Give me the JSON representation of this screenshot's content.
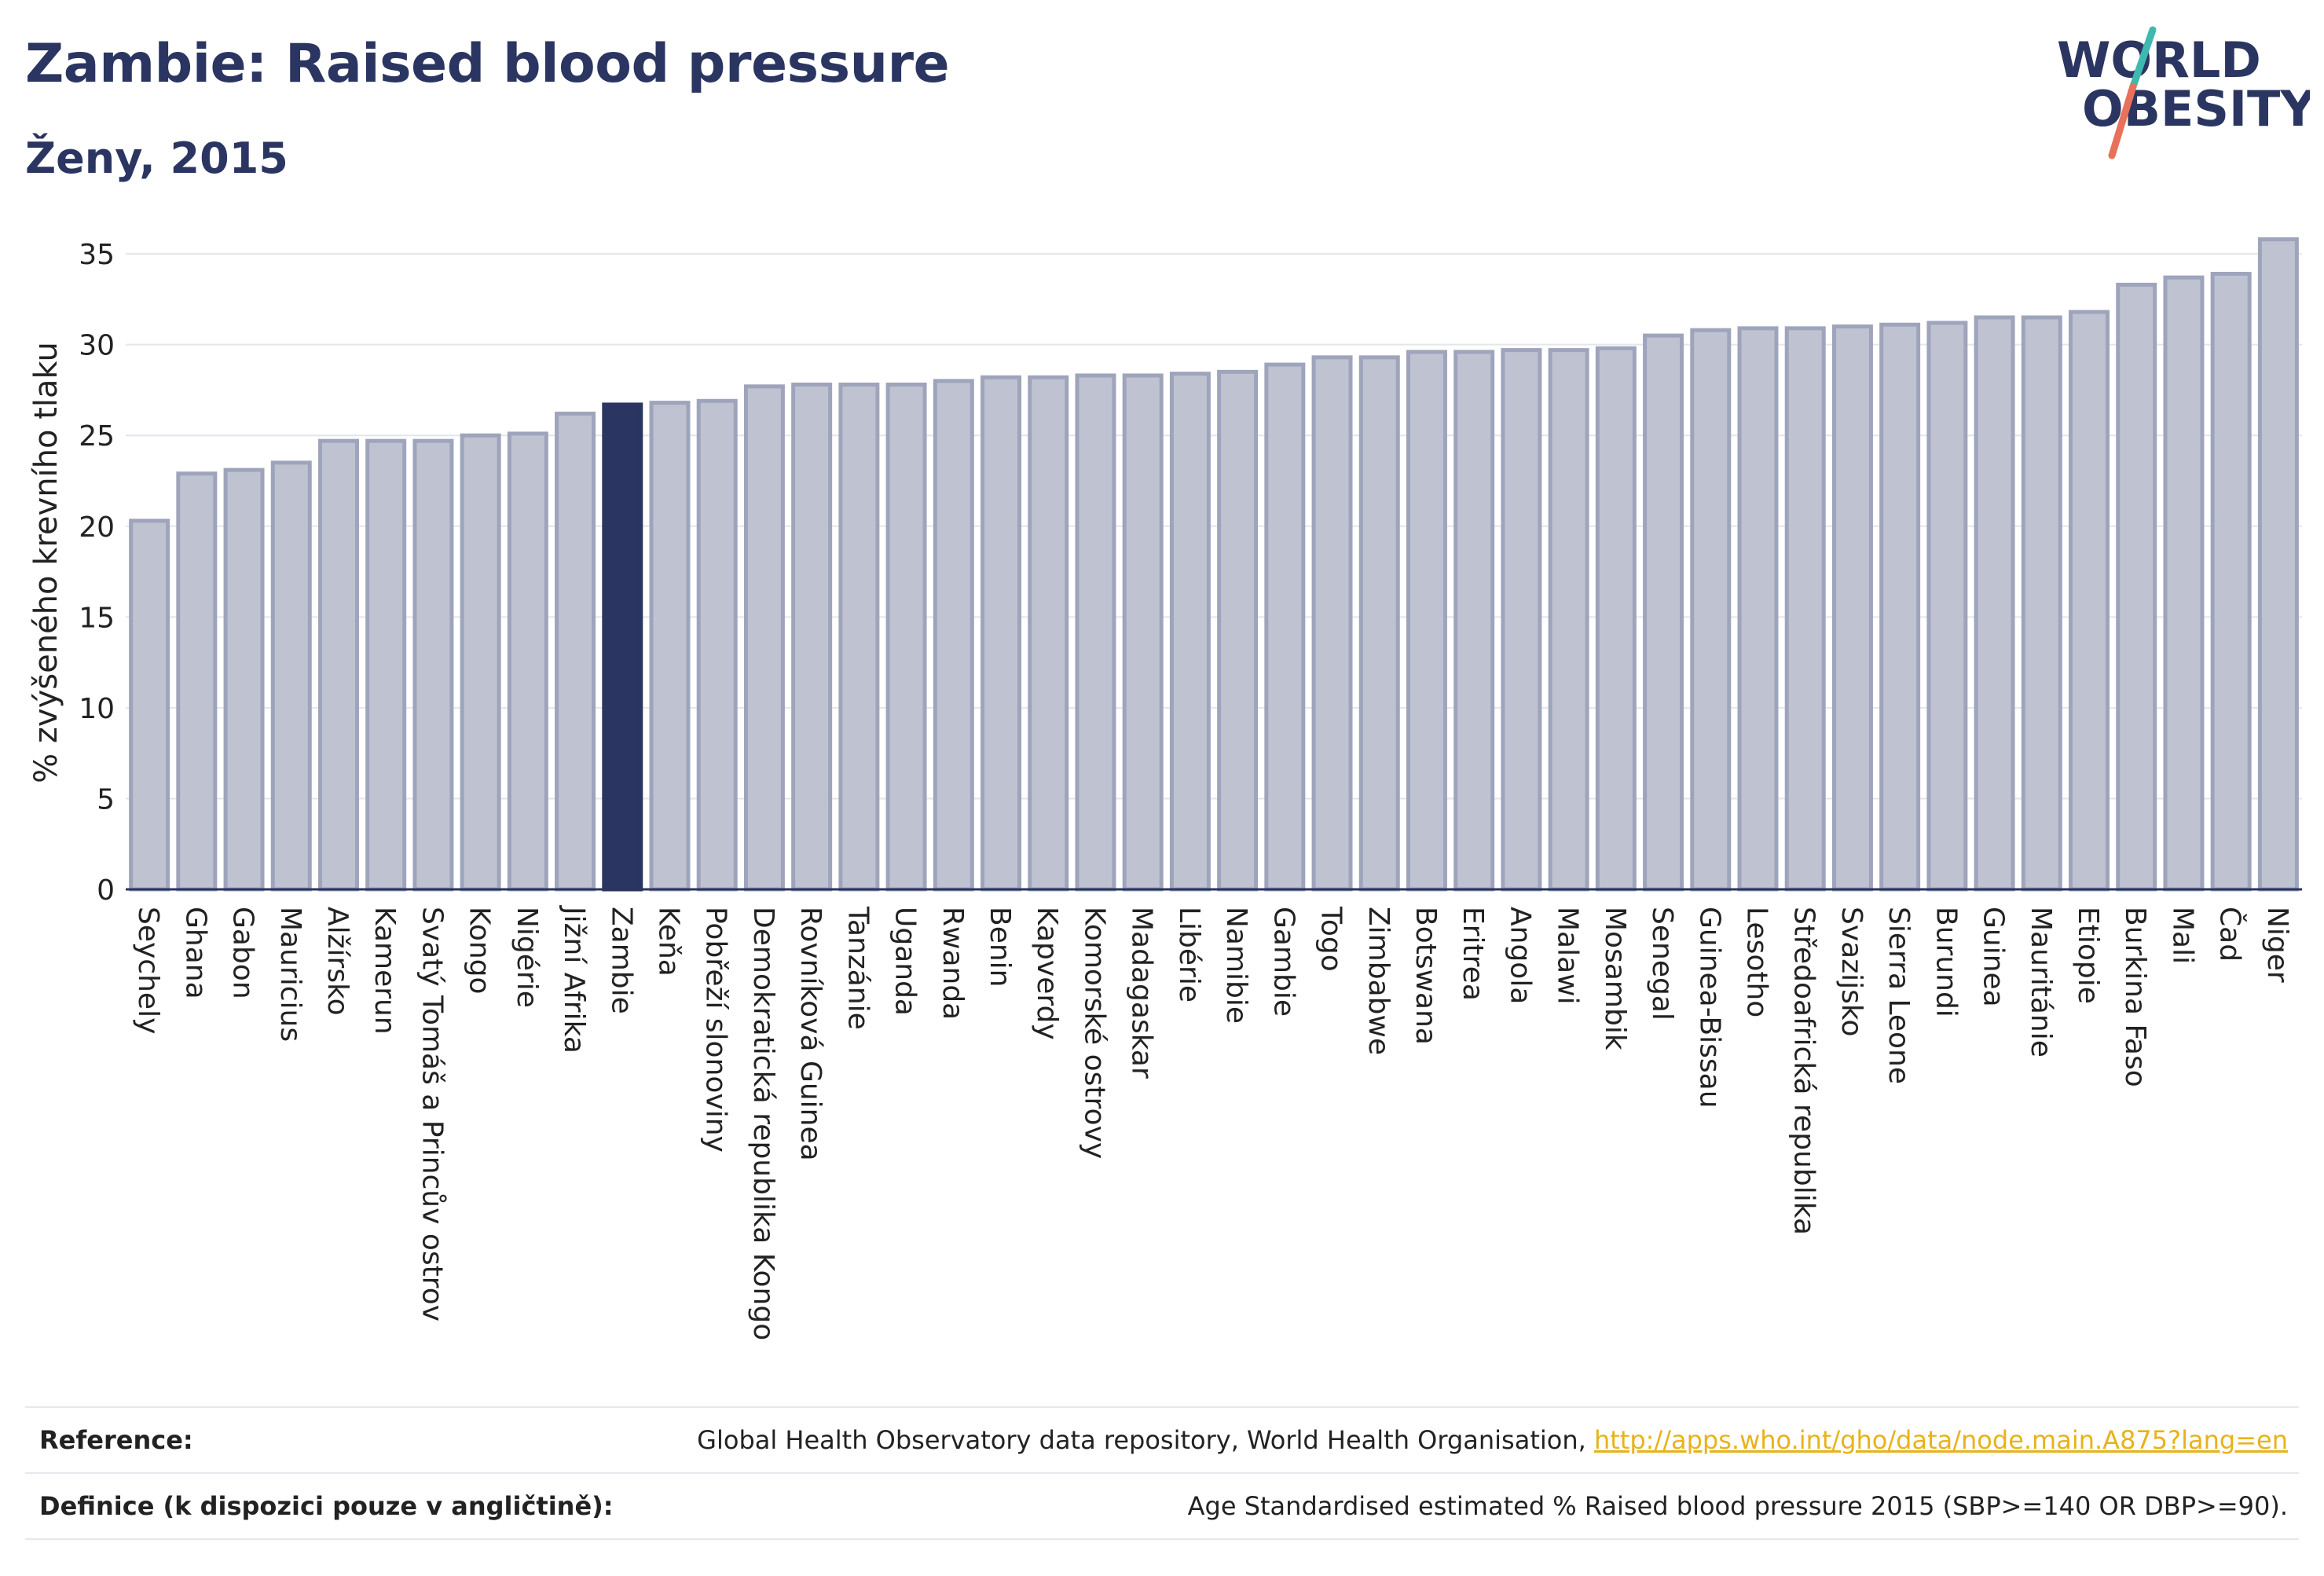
{
  "header": {
    "title": "Zambie: Raised blood pressure",
    "subtitle": "Ženy, 2015"
  },
  "logo": {
    "line1": "WORLD",
    "line2": "OBESITY",
    "colors": {
      "text": "#2b3561",
      "slash_top": "#3fb8af",
      "slash_bottom": "#e8715a"
    }
  },
  "chart_data": {
    "type": "bar",
    "ylabel": "% zvýšeného krevního tlaku",
    "ylim": [
      0,
      36
    ],
    "yticks": [
      0,
      5,
      10,
      15,
      20,
      25,
      30,
      35
    ],
    "grid": true,
    "highlight": "Zambie",
    "colors": {
      "bar": "#bfc3d1",
      "bar_edge": "#9ea4bb",
      "highlight": "#2b3561",
      "axis": "#2b3561",
      "grid": "#e4e6ec"
    },
    "categories": [
      "Seychely",
      "Ghana",
      "Gabon",
      "Mauricius",
      "Alžírsko",
      "Kamerun",
      "Svatý Tomáš a Princův ostrov",
      "Kongo",
      "Nigérie",
      "Jižní Afrika",
      "Zambie",
      "Keňa",
      "Pobřeží slonoviny",
      "Demokratická republika Kongo",
      "Rovníková Guinea",
      "Tanzánie",
      "Uganda",
      "Rwanda",
      "Benin",
      "Kapverdy",
      "Komorské ostrovy",
      "Madagaskar",
      "Libérie",
      "Namibie",
      "Gambie",
      "Togo",
      "Zimbabwe",
      "Botswana",
      "Eritrea",
      "Angola",
      "Malawi",
      "Mosambik",
      "Senegal",
      "Guinea-Bissau",
      "Lesotho",
      "Středoafrická republika",
      "Svazijsko",
      "Sierra Leone",
      "Burundi",
      "Guinea",
      "Mauritánie",
      "Etiopie",
      "Burkina Faso",
      "Mali",
      "Čad",
      "Niger"
    ],
    "values": [
      20.3,
      22.9,
      23.1,
      23.5,
      24.7,
      24.7,
      24.7,
      25.0,
      25.1,
      26.2,
      26.7,
      26.8,
      26.9,
      27.7,
      27.8,
      27.8,
      27.8,
      28.0,
      28.2,
      28.2,
      28.3,
      28.3,
      28.4,
      28.5,
      28.9,
      29.3,
      29.3,
      29.6,
      29.6,
      29.7,
      29.7,
      29.8,
      30.5,
      30.8,
      30.9,
      30.9,
      31.0,
      31.1,
      31.2,
      31.5,
      31.5,
      31.8,
      33.3,
      33.7,
      33.9,
      35.8
    ]
  },
  "footer": {
    "reference_label": "Reference:",
    "reference_text": "Global Health Observatory data repository, World Health Organisation, ",
    "reference_link": "http://apps.who.int/gho/data/node.main.A875?lang=en",
    "definition_label": "Definice (k dispozici pouze v angličtině):",
    "definition_text": "Age Standardised estimated % Raised blood pressure 2015 (SBP>=140 OR DBP>=90)."
  }
}
